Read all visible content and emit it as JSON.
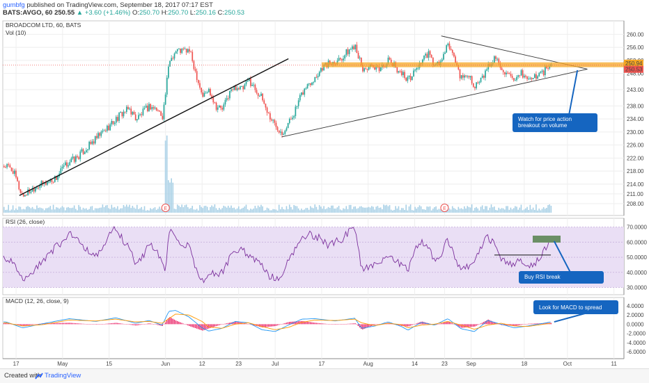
{
  "header": {
    "author": "gumbfg",
    "published_text": " published on TradingView.com, September 18, 2017 07:17 EST",
    "symbol": "BATS:AVGO, 60",
    "last": "250.55",
    "change": "▲ +3.60 (+1.46%)",
    "o_label": "O:",
    "o_val": "250.70",
    "h_label": "H:",
    "h_val": "250.70",
    "l_label": "L:",
    "l_val": "250.16",
    "c_label": "C:",
    "c_val": "250.53"
  },
  "footer": {
    "created_with": "Created with",
    "brand": "TradingView"
  },
  "colors": {
    "up": "#26a69a",
    "down": "#ef5350",
    "rsi": "#7b2f9c",
    "rsi_band": "#eadff5",
    "macd": "#2196f3",
    "signal": "#ff9800",
    "hist": "#e91e63",
    "resistance": "#f5a623",
    "note_bg": "#1565c0",
    "volume": "#a8d0e6"
  },
  "chart_data": [
    {
      "type": "candlestick",
      "title": "BROADCOM LTD, 60, BATS",
      "indicator": "Vol (10)",
      "y_ticks": [
        "260.00",
        "256.00",
        "252.00",
        "248.00",
        "243.00",
        "238.00",
        "234.00",
        "230.00",
        "226.00",
        "222.00",
        "218.00",
        "214.00",
        "211.00",
        "208.00"
      ],
      "y_tick_values": [
        260,
        256,
        252,
        248,
        243,
        238,
        234,
        230,
        226,
        222,
        218,
        214,
        211,
        208
      ],
      "ylim": [
        206.5,
        262
      ],
      "price_tags": [
        "250.94",
        "250.53"
      ],
      "price_tag_values": [
        250.94,
        250.53
      ],
      "x_ticks": [
        "17",
        "May",
        "15",
        "Jun",
        "12",
        "23",
        "Jul",
        "17",
        "Aug",
        "14",
        "23",
        "Sep",
        "18",
        "Oct",
        "11"
      ],
      "x_tick_days": [
        0,
        14,
        28,
        45,
        56,
        67,
        78,
        92,
        106,
        120,
        129,
        137,
        153,
        166,
        180
      ],
      "x_range_days": [
        -4,
        183
      ],
      "start_date": "2017-04-17",
      "earnings_markers": [
        "E",
        "E"
      ],
      "earnings_days": [
        45,
        129
      ],
      "price_path": [
        [
          -3,
          219.5
        ],
        [
          -1,
          218
        ],
        [
          1,
          212
        ],
        [
          2,
          210.5
        ],
        [
          4,
          212
        ],
        [
          6,
          213.5
        ],
        [
          8,
          214
        ],
        [
          10,
          215
        ],
        [
          12,
          216
        ],
        [
          14,
          219
        ],
        [
          16,
          221
        ],
        [
          18,
          222
        ],
        [
          20,
          224
        ],
        [
          22,
          226
        ],
        [
          24,
          228
        ],
        [
          26,
          230
        ],
        [
          28,
          232
        ],
        [
          30,
          234
        ],
        [
          32,
          236
        ],
        [
          34,
          237
        ],
        [
          36,
          234
        ],
        [
          38,
          236
        ],
        [
          40,
          238
        ],
        [
          42,
          237
        ],
        [
          44,
          235
        ],
        [
          46,
          252
        ],
        [
          48,
          255
        ],
        [
          50,
          255
        ],
        [
          52,
          255
        ],
        [
          54,
          248
        ],
        [
          56,
          241
        ],
        [
          58,
          243
        ],
        [
          60,
          238
        ],
        [
          62,
          237
        ],
        [
          64,
          242
        ],
        [
          66,
          244
        ],
        [
          68,
          243
        ],
        [
          70,
          246
        ],
        [
          72,
          243
        ],
        [
          74,
          240
        ],
        [
          76,
          235
        ],
        [
          78,
          232
        ],
        [
          80,
          230
        ],
        [
          82,
          233
        ],
        [
          84,
          237
        ],
        [
          86,
          242
        ],
        [
          88,
          245
        ],
        [
          90,
          247
        ],
        [
          92,
          250
        ],
        [
          94,
          251
        ],
        [
          96,
          252
        ],
        [
          98,
          253
        ],
        [
          100,
          255
        ],
        [
          102,
          257
        ],
        [
          104,
          249
        ],
        [
          106,
          250
        ],
        [
          108,
          249
        ],
        [
          110,
          250
        ],
        [
          112,
          252
        ],
        [
          114,
          250
        ],
        [
          116,
          248
        ],
        [
          118,
          246
        ],
        [
          120,
          249
        ],
        [
          122,
          252
        ],
        [
          124,
          254
        ],
        [
          126,
          250
        ],
        [
          128,
          252
        ],
        [
          130,
          257
        ],
        [
          132,
          252
        ],
        [
          134,
          246
        ],
        [
          136,
          248
        ],
        [
          138,
          244
        ],
        [
          140,
          246
        ],
        [
          142,
          250
        ],
        [
          144,
          253
        ],
        [
          146,
          250
        ],
        [
          148,
          247
        ],
        [
          150,
          245
        ],
        [
          152,
          248
        ],
        [
          154,
          246
        ],
        [
          156,
          247
        ],
        [
          158,
          248
        ],
        [
          160,
          250
        ],
        [
          161,
          250.5
        ]
      ],
      "annotations": [
        "Watch for price action breakout on volume"
      ]
    },
    {
      "type": "line",
      "title": "RSI (26, close)",
      "y_ticks": [
        "70.0000",
        "60.0000",
        "50.0000",
        "40.0000",
        "30.0000"
      ],
      "y_tick_values": [
        70,
        60,
        50,
        40,
        30
      ],
      "ylim": [
        27,
        74
      ],
      "band": [
        30,
        70
      ],
      "path": [
        [
          -3,
          49
        ],
        [
          -1,
          46
        ],
        [
          1,
          38
        ],
        [
          2,
          34
        ],
        [
          4,
          38
        ],
        [
          6,
          42
        ],
        [
          8,
          48
        ],
        [
          10,
          52
        ],
        [
          12,
          57
        ],
        [
          14,
          60
        ],
        [
          16,
          66
        ],
        [
          18,
          63
        ],
        [
          20,
          58
        ],
        [
          22,
          54
        ],
        [
          24,
          50
        ],
        [
          26,
          56
        ],
        [
          28,
          64
        ],
        [
          30,
          70
        ],
        [
          32,
          62
        ],
        [
          34,
          56
        ],
        [
          36,
          46
        ],
        [
          38,
          50
        ],
        [
          40,
          58
        ],
        [
          42,
          56
        ],
        [
          44,
          47
        ],
        [
          45,
          40
        ],
        [
          46,
          68
        ],
        [
          48,
          62
        ],
        [
          50,
          56
        ],
        [
          52,
          58
        ],
        [
          54,
          44
        ],
        [
          56,
          34
        ],
        [
          58,
          40
        ],
        [
          60,
          38
        ],
        [
          62,
          40
        ],
        [
          64,
          48
        ],
        [
          66,
          54
        ],
        [
          68,
          56
        ],
        [
          70,
          50
        ],
        [
          72,
          48
        ],
        [
          74,
          44
        ],
        [
          76,
          38
        ],
        [
          78,
          36
        ],
        [
          80,
          38
        ],
        [
          82,
          48
        ],
        [
          84,
          56
        ],
        [
          86,
          62
        ],
        [
          88,
          66
        ],
        [
          90,
          64
        ],
        [
          92,
          62
        ],
        [
          94,
          58
        ],
        [
          96,
          60
        ],
        [
          98,
          62
        ],
        [
          100,
          66
        ],
        [
          102,
          70
        ],
        [
          104,
          42
        ],
        [
          106,
          44
        ],
        [
          108,
          46
        ],
        [
          110,
          48
        ],
        [
          112,
          50
        ],
        [
          114,
          48
        ],
        [
          116,
          45
        ],
        [
          118,
          42
        ],
        [
          120,
          56
        ],
        [
          122,
          60
        ],
        [
          124,
          58
        ],
        [
          126,
          46
        ],
        [
          128,
          52
        ],
        [
          130,
          62
        ],
        [
          132,
          50
        ],
        [
          134,
          40
        ],
        [
          136,
          44
        ],
        [
          138,
          46
        ],
        [
          140,
          56
        ],
        [
          142,
          64
        ],
        [
          144,
          58
        ],
        [
          146,
          50
        ],
        [
          148,
          46
        ],
        [
          150,
          46
        ],
        [
          152,
          48
        ],
        [
          154,
          44
        ],
        [
          156,
          46
        ],
        [
          158,
          50
        ],
        [
          160,
          58
        ],
        [
          161,
          60
        ]
      ],
      "annotations": [
        "Buy RSI break"
      ]
    },
    {
      "type": "line",
      "title": "MACD (12, 26, close, 9)",
      "y_ticks": [
        "4.0000",
        "2.0000",
        "0.0000",
        "-2.0000",
        "-4.0000",
        "-6.0000"
      ],
      "y_tick_values": [
        4,
        2,
        0,
        -2,
        -4,
        -6
      ],
      "ylim": [
        -7.2,
        5.2
      ],
      "series": [
        {
          "name": "MACD",
          "path": [
            [
              -3,
              0.5
            ],
            [
              2,
              -0.8
            ],
            [
              8,
              0.1
            ],
            [
              16,
              1.2
            ],
            [
              24,
              0.6
            ],
            [
              30,
              1.4
            ],
            [
              36,
              0.2
            ],
            [
              40,
              0.8
            ],
            [
              44,
              -0.2
            ],
            [
              46,
              2.8
            ],
            [
              48,
              3
            ],
            [
              52,
              1.6
            ],
            [
              56,
              -0.8
            ],
            [
              58,
              -1.5
            ],
            [
              62,
              -0.9
            ],
            [
              66,
              0.6
            ],
            [
              70,
              0.3
            ],
            [
              74,
              -1.2
            ],
            [
              78,
              -1.6
            ],
            [
              82,
              -0.2
            ],
            [
              86,
              1.1
            ],
            [
              90,
              1.2
            ],
            [
              96,
              0.7
            ],
            [
              102,
              1.3
            ],
            [
              104,
              -0.9
            ],
            [
              108,
              -0.4
            ],
            [
              112,
              0.5
            ],
            [
              116,
              -0.5
            ],
            [
              118,
              -1.3
            ],
            [
              122,
              0.4
            ],
            [
              126,
              -0.2
            ],
            [
              130,
              1.2
            ],
            [
              134,
              -1
            ],
            [
              138,
              -1.6
            ],
            [
              142,
              0.8
            ],
            [
              146,
              0
            ],
            [
              150,
              -0.8
            ],
            [
              154,
              -0.4
            ],
            [
              158,
              0.1
            ],
            [
              161,
              0.5
            ]
          ]
        },
        {
          "name": "Signal",
          "path": [
            [
              -3,
              0.3
            ],
            [
              2,
              -0.4
            ],
            [
              8,
              -0.1
            ],
            [
              16,
              0.9
            ],
            [
              24,
              0.7
            ],
            [
              30,
              1.1
            ],
            [
              36,
              0.5
            ],
            [
              40,
              0.6
            ],
            [
              44,
              0.2
            ],
            [
              46,
              1.2
            ],
            [
              48,
              2.2
            ],
            [
              52,
              2.0
            ],
            [
              56,
              0.6
            ],
            [
              58,
              -0.6
            ],
            [
              62,
              -0.9
            ],
            [
              66,
              0
            ],
            [
              70,
              0.3
            ],
            [
              74,
              -0.5
            ],
            [
              78,
              -1.2
            ],
            [
              82,
              -0.7
            ],
            [
              86,
              0.4
            ],
            [
              90,
              0.9
            ],
            [
              96,
              0.8
            ],
            [
              102,
              1.1
            ],
            [
              104,
              0.3
            ],
            [
              108,
              -0.3
            ],
            [
              112,
              0.2
            ],
            [
              116,
              -0.1
            ],
            [
              118,
              -0.8
            ],
            [
              122,
              -0.2
            ],
            [
              126,
              0
            ],
            [
              130,
              0.6
            ],
            [
              134,
              -0.2
            ],
            [
              138,
              -1.1
            ],
            [
              142,
              -0.2
            ],
            [
              146,
              0.2
            ],
            [
              150,
              -0.4
            ],
            [
              154,
              -0.5
            ],
            [
              158,
              -0.1
            ],
            [
              161,
              0.2
            ]
          ]
        }
      ],
      "annotations": [
        "Look for MACD to spread"
      ]
    }
  ]
}
